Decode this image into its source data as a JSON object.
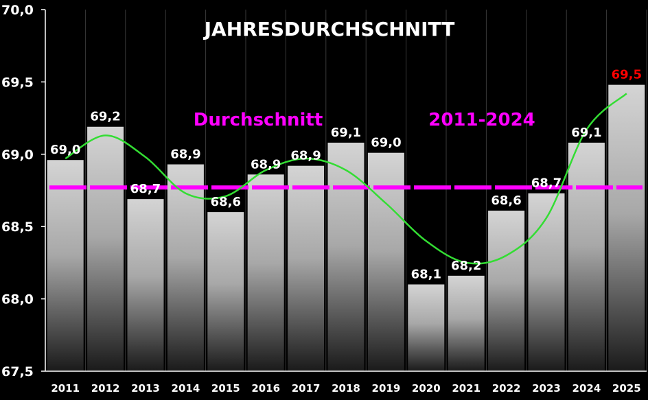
{
  "chart_data": {
    "type": "bar",
    "title": "JAHRESDURCHSCHNITT",
    "categories": [
      "2011",
      "2012",
      "2013",
      "2014",
      "2015",
      "2016",
      "2017",
      "2018",
      "2019",
      "2020",
      "2021",
      "2022",
      "2023",
      "2024",
      "2025"
    ],
    "values": [
      68.96,
      69.19,
      68.69,
      68.93,
      68.6,
      68.86,
      68.92,
      69.08,
      69.01,
      68.1,
      68.16,
      68.61,
      68.73,
      69.08,
      69.48
    ],
    "data_labels": [
      "69,0",
      "69,2",
      "68,7",
      "68,9",
      "68,6",
      "68,9",
      "68,9",
      "69,1",
      "69,0",
      "68,1",
      "68,2",
      "68,6",
      "68,7",
      "69,1",
      "69,5"
    ],
    "highlight_last_label_color": "#ff0000",
    "ylim": [
      67.5,
      70.0
    ],
    "yticks": [
      67.5,
      68.0,
      68.5,
      69.0,
      69.5,
      70.0
    ],
    "ytick_labels": [
      "67,5",
      "68,0",
      "68,5",
      "69,0",
      "69,5",
      "70,0"
    ],
    "grid": false,
    "average_line": {
      "value": 68.77,
      "color": "#ff00ff",
      "label_left": "Durchschnitt",
      "label_right": "2011-2024"
    },
    "trend_line": {
      "color": "#33dd33",
      "points": [
        {
          "x": "2011",
          "y": 68.97
        },
        {
          "x": "2012",
          "y": 69.13
        },
        {
          "x": "2013",
          "y": 68.98
        },
        {
          "x": "2014",
          "y": 68.73
        },
        {
          "x": "2015",
          "y": 68.71
        },
        {
          "x": "2016",
          "y": 68.89
        },
        {
          "x": "2017",
          "y": 68.97
        },
        {
          "x": "2018",
          "y": 68.89
        },
        {
          "x": "2019",
          "y": 68.66
        },
        {
          "x": "2020",
          "y": 68.4
        },
        {
          "x": "2021",
          "y": 68.25
        },
        {
          "x": "2022",
          "y": 68.3
        },
        {
          "x": "2023",
          "y": 68.56
        },
        {
          "x": "2024",
          "y": 69.17
        },
        {
          "x": "2025",
          "y": 69.42
        }
      ]
    },
    "colors": {
      "background": "#000000",
      "bar_top": "#d4d4d4",
      "bar_bottom": "#1a1a1a",
      "label": "#ffffff"
    }
  }
}
